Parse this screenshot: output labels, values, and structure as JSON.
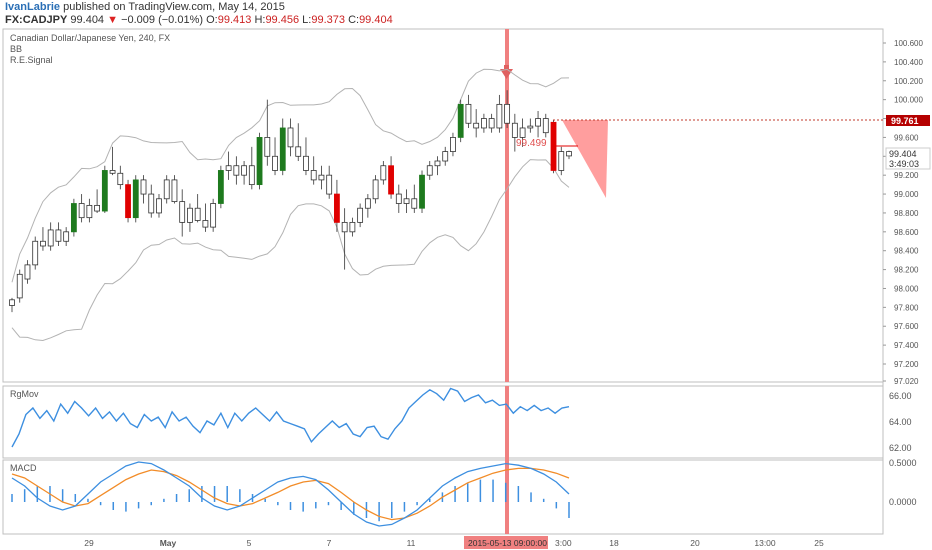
{
  "header": {
    "author": "IvanLabrie",
    "published": "published on TradingView.com, May 14, 2015",
    "symbol": "FX:CADJPY",
    "last": "99.404",
    "change_arrow": "▼",
    "change": "−0.009 (−0.01%)",
    "o_label": "O:",
    "o": "99.413",
    "h_label": "H:",
    "h": "99.456",
    "l_label": "L:",
    "l": "99.373",
    "c_label": "C:",
    "c": "99.404"
  },
  "legend": {
    "title": "Canadian Dollar/Japanese Yen, 240, FX",
    "bb": "BB",
    "signal": "R.E.Signal"
  },
  "colors": {
    "up": "#1e7a1e",
    "down": "#e00000",
    "bb": "#b3b3b3",
    "indicator": "#3d8fe0",
    "signal": "#f28c28",
    "vline": "#f08080",
    "target": "#ff9e9e"
  },
  "price_axis": {
    "ticks": [
      "100.600",
      "100.400",
      "100.200",
      "100.000",
      "99.800",
      "99.600",
      "99.400",
      "99.200",
      "99.000",
      "98.800",
      "98.600",
      "98.400",
      "98.200",
      "98.000",
      "97.800",
      "97.600",
      "97.400",
      "97.200",
      "97.020"
    ],
    "last_label": "99.404",
    "countdown": "3:49:03",
    "signal_label": "99.761",
    "inline_label": "99.499"
  },
  "x_axis": {
    "labels": [
      "29",
      "May",
      "5",
      "7",
      "11",
      "20",
      "18",
      "20",
      "13:00",
      "25"
    ],
    "crosshair_label": "2015-05-13 09:00:00",
    "partial_label": "3:00"
  },
  "rgmov": {
    "title": "RgMov",
    "ticks": [
      "66.00",
      "64.00",
      "62.00"
    ]
  },
  "macd": {
    "title": "MACD",
    "ticks": [
      "0.5000",
      "0.0000"
    ]
  },
  "chart_data": {
    "type": "candlestick",
    "symbol": "FX:CADJPY",
    "ylim": [
      97.0,
      100.7
    ],
    "candles": [
      [
        97.82,
        97.9,
        97.75,
        97.88
      ],
      [
        97.9,
        98.2,
        97.85,
        98.15
      ],
      [
        98.1,
        98.3,
        98.05,
        98.25
      ],
      [
        98.25,
        98.55,
        98.2,
        98.5
      ],
      [
        98.5,
        98.65,
        98.4,
        98.45
      ],
      [
        98.45,
        98.7,
        98.4,
        98.62
      ],
      [
        98.62,
        98.7,
        98.45,
        98.5
      ],
      [
        98.5,
        98.65,
        98.45,
        98.6
      ],
      [
        98.6,
        98.95,
        98.55,
        98.9
      ],
      [
        98.9,
        99.0,
        98.7,
        98.75
      ],
      [
        98.75,
        98.95,
        98.7,
        98.88
      ],
      [
        98.88,
        99.05,
        98.8,
        98.82
      ],
      [
        98.82,
        99.3,
        98.8,
        99.25
      ],
      [
        99.25,
        99.5,
        99.2,
        99.22
      ],
      [
        99.22,
        99.3,
        99.05,
        99.1
      ],
      [
        99.1,
        99.15,
        98.7,
        98.75
      ],
      [
        98.75,
        99.2,
        98.7,
        99.15
      ],
      [
        99.15,
        99.2,
        98.9,
        99.0
      ],
      [
        99.0,
        99.1,
        98.75,
        98.8
      ],
      [
        98.8,
        99.0,
        98.75,
        98.95
      ],
      [
        98.95,
        99.2,
        98.9,
        99.15
      ],
      [
        99.15,
        99.2,
        98.9,
        98.92
      ],
      [
        98.92,
        99.05,
        98.55,
        98.7
      ],
      [
        98.7,
        98.9,
        98.6,
        98.85
      ],
      [
        98.85,
        99.0,
        98.7,
        98.72
      ],
      [
        98.72,
        98.9,
        98.6,
        98.65
      ],
      [
        98.65,
        98.95,
        98.6,
        98.9
      ],
      [
        98.9,
        99.3,
        98.85,
        99.25
      ],
      [
        99.25,
        99.45,
        99.15,
        99.3
      ],
      [
        99.3,
        99.4,
        99.1,
        99.2
      ],
      [
        99.2,
        99.35,
        99.1,
        99.3
      ],
      [
        99.3,
        99.5,
        99.05,
        99.1
      ],
      [
        99.1,
        99.65,
        99.05,
        99.6
      ],
      [
        99.6,
        100.0,
        99.3,
        99.4
      ],
      [
        99.4,
        99.6,
        99.2,
        99.25
      ],
      [
        99.25,
        99.8,
        99.2,
        99.7
      ],
      [
        99.7,
        99.8,
        99.4,
        99.5
      ],
      [
        99.5,
        99.75,
        99.35,
        99.4
      ],
      [
        99.4,
        99.6,
        99.2,
        99.25
      ],
      [
        99.25,
        99.4,
        99.1,
        99.15
      ],
      [
        99.15,
        99.3,
        99.05,
        99.2
      ],
      [
        99.2,
        99.3,
        98.95,
        99.0
      ],
      [
        99.0,
        99.15,
        98.6,
        98.7
      ],
      [
        98.7,
        98.85,
        98.2,
        98.6
      ],
      [
        98.6,
        98.75,
        98.55,
        98.7
      ],
      [
        98.7,
        98.9,
        98.65,
        98.85
      ],
      [
        98.85,
        99.0,
        98.75,
        98.95
      ],
      [
        98.95,
        99.2,
        98.9,
        99.15
      ],
      [
        99.15,
        99.35,
        99.1,
        99.3
      ],
      [
        99.3,
        99.4,
        98.95,
        99.0
      ],
      [
        99.0,
        99.1,
        98.8,
        98.9
      ],
      [
        98.9,
        99.05,
        98.8,
        98.95
      ],
      [
        98.95,
        99.1,
        98.8,
        98.85
      ],
      [
        98.85,
        99.25,
        98.8,
        99.2
      ],
      [
        99.2,
        99.35,
        99.15,
        99.3
      ],
      [
        99.3,
        99.4,
        99.2,
        99.35
      ],
      [
        99.35,
        99.5,
        99.3,
        99.45
      ],
      [
        99.45,
        99.65,
        99.4,
        99.6
      ],
      [
        99.6,
        100.0,
        99.55,
        99.95
      ],
      [
        99.95,
        100.05,
        99.7,
        99.75
      ],
      [
        99.75,
        99.9,
        99.6,
        99.7
      ],
      [
        99.7,
        99.85,
        99.65,
        99.8
      ],
      [
        99.8,
        99.85,
        99.65,
        99.7
      ],
      [
        99.7,
        100.05,
        99.65,
        99.95
      ],
      [
        99.95,
        100.1,
        99.7,
        99.75
      ],
      [
        99.75,
        99.85,
        99.45,
        99.6
      ],
      [
        99.6,
        99.8,
        99.5,
        99.7
      ],
      [
        99.7,
        99.8,
        99.65,
        99.72
      ],
      [
        99.72,
        99.88,
        99.6,
        99.8
      ],
      [
        99.8,
        99.85,
        99.6,
        99.65
      ],
      [
        99.76,
        99.78,
        99.22,
        99.25
      ],
      [
        99.25,
        99.5,
        99.2,
        99.45
      ],
      [
        99.45,
        99.46,
        99.37,
        99.404
      ]
    ],
    "signal": {
      "price": 99.761,
      "marker": "down-arrow",
      "target_label": 99.499
    },
    "rgmov": [
      62.0,
      63.0,
      64.5,
      65.0,
      64.2,
      64.8,
      64.0,
      65.3,
      64.6,
      65.5,
      65.0,
      64.4,
      65.0,
      64.2,
      64.7,
      64.0,
      64.6,
      63.8,
      63.5,
      64.5,
      64.0,
      64.3,
      63.5,
      64.7,
      64.0,
      64.3,
      63.6,
      63.1,
      64.0,
      63.7,
      64.6,
      63.5,
      64.6,
      64.0,
      64.6,
      65.0,
      64.5,
      64.0,
      64.7,
      64.0,
      63.8,
      63.6,
      63.4,
      62.4,
      63.0,
      63.5,
      64.0,
      63.5,
      63.8,
      63.0,
      62.8,
      63.5,
      63.6,
      62.8,
      62.6,
      63.4,
      64.0,
      65.0,
      65.5,
      66.0,
      66.4,
      66.1,
      65.6,
      66.5,
      66.3,
      65.5,
      65.8,
      66.0,
      65.4,
      65.6,
      65.2,
      65.3,
      64.6,
      65.1,
      64.8,
      65.2,
      64.8,
      65.0,
      64.6,
      65.0,
      65.1
    ],
    "macd_line": [
      0.3,
      0.2,
      0.05,
      -0.05,
      -0.1,
      -0.05,
      0.1,
      0.25,
      0.35,
      0.45,
      0.5,
      0.48,
      0.4,
      0.3,
      0.2,
      0.05,
      -0.05,
      -0.1,
      -0.05,
      0.05,
      0.15,
      0.25,
      0.3,
      0.32,
      0.28,
      0.15,
      0.0,
      -0.15,
      -0.25,
      -0.3,
      -0.28,
      -0.2,
      -0.1,
      0.05,
      0.2,
      0.3,
      0.38,
      0.42,
      0.45,
      0.48,
      0.46,
      0.42,
      0.35,
      0.25,
      0.1
    ],
    "macd_signal": [
      0.35,
      0.3,
      0.2,
      0.1,
      0.0,
      -0.05,
      -0.02,
      0.08,
      0.18,
      0.28,
      0.35,
      0.4,
      0.38,
      0.33,
      0.25,
      0.15,
      0.05,
      -0.02,
      -0.05,
      -0.02,
      0.05,
      0.12,
      0.2,
      0.25,
      0.27,
      0.23,
      0.12,
      0.0,
      -0.1,
      -0.18,
      -0.22,
      -0.2,
      -0.14,
      -0.05,
      0.06,
      0.15,
      0.24,
      0.3,
      0.36,
      0.4,
      0.42,
      0.42,
      0.4,
      0.36,
      0.3
    ],
    "macd_hist": [
      0.05,
      0.08,
      0.1,
      0.1,
      0.08,
      0.05,
      0.02,
      -0.02,
      -0.05,
      -0.06,
      -0.04,
      -0.02,
      0.02,
      0.05,
      0.08,
      0.1,
      0.1,
      0.1,
      0.08,
      0.05,
      0.02,
      -0.02,
      -0.05,
      -0.06,
      -0.04,
      -0.02,
      -0.05,
      -0.08,
      -0.1,
      -0.12,
      -0.1,
      -0.06,
      -0.02,
      0.02,
      0.06,
      0.1,
      0.12,
      0.14,
      0.14,
      0.12,
      0.1,
      0.06,
      0.02,
      -0.04,
      -0.1
    ]
  }
}
